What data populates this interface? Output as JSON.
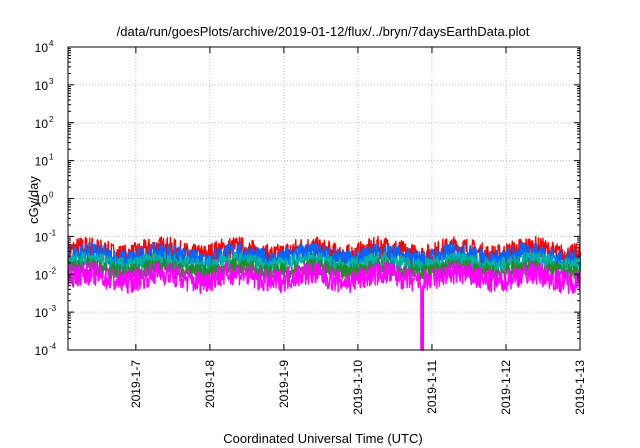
{
  "chart_data": {
    "type": "line",
    "title": "/data/run/goesPlots/archive/2019-01-12/flux/../bryn/7daysEarthData.plot",
    "xlabel": "Coordinated Universal Time (UTC)",
    "ylabel": "cGy/day",
    "yscale": "log",
    "ylim": [
      0.0001,
      10000
    ],
    "xlim": [
      "2019-01-06 02:00",
      "2019-01-13"
    ],
    "grid": true,
    "yticks": [
      {
        "base": "10",
        "exp": "-4",
        "value": 0.0001
      },
      {
        "base": "10",
        "exp": "-3",
        "value": 0.001
      },
      {
        "base": "10",
        "exp": "-2",
        "value": 0.01
      },
      {
        "base": "10",
        "exp": "-1",
        "value": 0.1
      },
      {
        "base": "10",
        "exp": "0",
        "value": 1
      },
      {
        "base": "10",
        "exp": "1",
        "value": 10
      },
      {
        "base": "10",
        "exp": "2",
        "value": 100
      },
      {
        "base": "10",
        "exp": "3",
        "value": 1000
      },
      {
        "base": "10",
        "exp": "4",
        "value": 10000
      }
    ],
    "xticks": [
      {
        "label": "2019-1-7",
        "value": "2019-01-07"
      },
      {
        "label": "2019-1-8",
        "value": "2019-01-08"
      },
      {
        "label": "2019-1-9",
        "value": "2019-01-09"
      },
      {
        "label": "2019-1-10",
        "value": "2019-01-10"
      },
      {
        "label": "2019-1-11",
        "value": "2019-01-11"
      },
      {
        "label": "2019-1-12",
        "value": "2019-01-12"
      },
      {
        "label": "2019-1-13",
        "value": "2019-01-13"
      }
    ],
    "series": [
      {
        "color": "#ff0000",
        "typical_low": 0.02,
        "typical_high": 0.07
      },
      {
        "color": "#0066ff",
        "typical_low": 0.015,
        "typical_high": 0.05
      },
      {
        "color": "#00b3a0",
        "typical_low": 0.012,
        "typical_high": 0.03
      },
      {
        "color": "#228b22",
        "typical_low": 0.008,
        "typical_high": 0.02
      },
      {
        "color": "#ff00ff",
        "typical_low": 0.004,
        "typical_high": 0.015,
        "dip_date": "2019-01-10 20:30",
        "dip_value": 0.0001
      }
    ]
  }
}
